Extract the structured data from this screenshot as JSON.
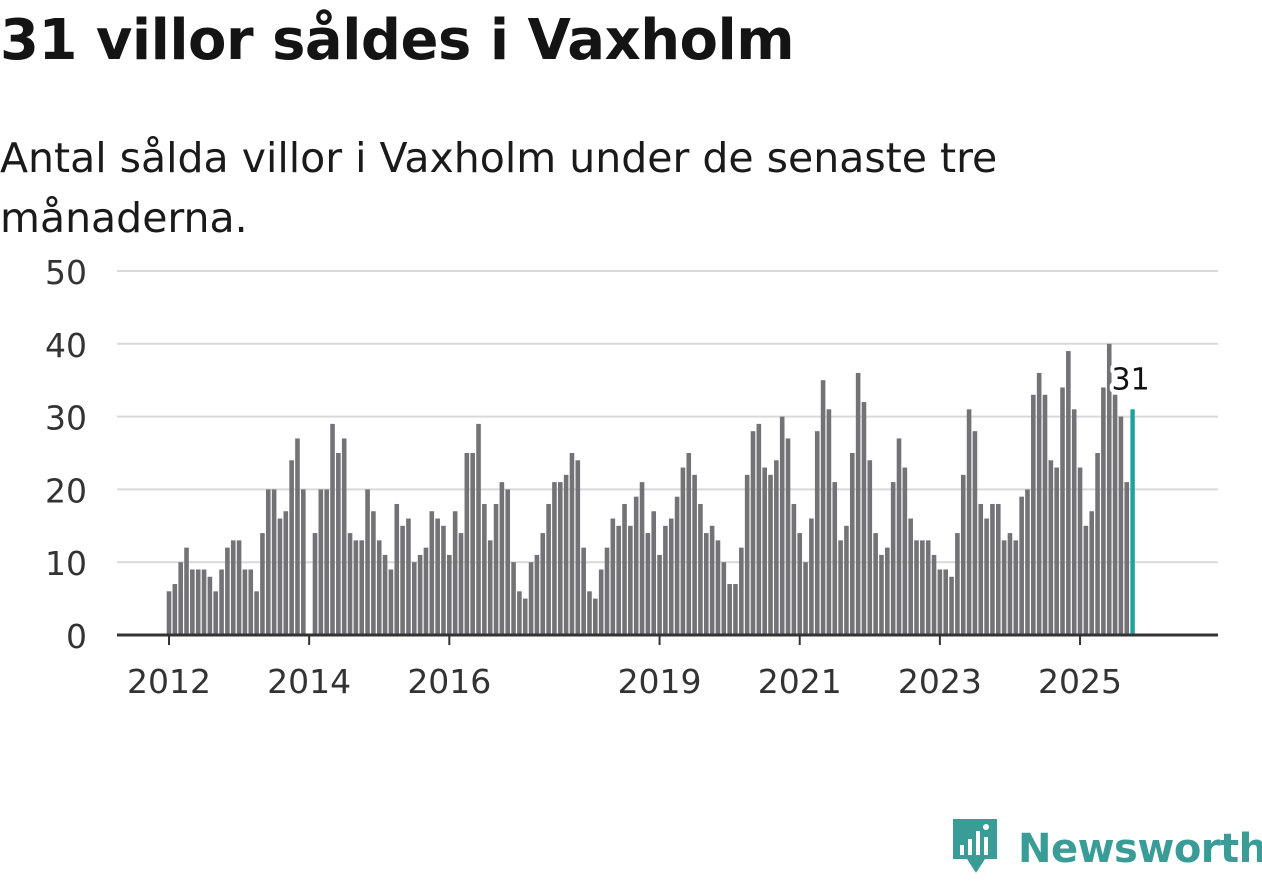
{
  "title": "31 villor såldes i Vaxholm",
  "subtitle": "Antal sålda villor i Vaxholm under de senaste tre månaderna.",
  "brand": {
    "name": "Newsworthy",
    "color": "#3a9c96",
    "icon": "chart-speech-bubble-icon"
  },
  "colors": {
    "bar": "#737276",
    "highlight": "#1ba39c",
    "grid": "#d9d9d9",
    "axis": "#333333"
  },
  "chart_data": {
    "type": "bar",
    "title": "31 villor såldes i Vaxholm",
    "xlabel": "",
    "ylabel": "",
    "ylim": [
      0,
      50
    ],
    "yticks": [
      0,
      10,
      20,
      30,
      40,
      50
    ],
    "grid": true,
    "start": "2012-01",
    "interval": "month",
    "xticks": [
      {
        "label": "2012",
        "index": 0
      },
      {
        "label": "2014",
        "index": 24
      },
      {
        "label": "2016",
        "index": 48
      },
      {
        "label": "2019",
        "index": 84
      },
      {
        "label": "2021",
        "index": 108
      },
      {
        "label": "2023",
        "index": 132
      },
      {
        "label": "2025",
        "index": 156
      }
    ],
    "values": [
      6,
      7,
      10,
      12,
      9,
      9,
      9,
      8,
      6,
      9,
      12,
      13,
      13,
      9,
      9,
      6,
      14,
      20,
      20,
      16,
      17,
      24,
      27,
      20,
      0,
      14,
      20,
      20,
      29,
      25,
      27,
      14,
      13,
      13,
      20,
      17,
      13,
      11,
      9,
      18,
      15,
      16,
      10,
      11,
      12,
      17,
      16,
      15,
      11,
      17,
      14,
      25,
      25,
      29,
      18,
      13,
      18,
      21,
      20,
      10,
      6,
      5,
      10,
      11,
      14,
      18,
      21,
      21,
      22,
      25,
      24,
      12,
      6,
      5,
      9,
      12,
      16,
      15,
      18,
      15,
      19,
      21,
      14,
      17,
      11,
      15,
      16,
      19,
      23,
      25,
      22,
      18,
      14,
      15,
      13,
      10,
      7,
      7,
      12,
      22,
      28,
      29,
      23,
      22,
      24,
      30,
      27,
      18,
      14,
      10,
      16,
      28,
      35,
      31,
      21,
      13,
      15,
      25,
      36,
      32,
      24,
      14,
      11,
      12,
      21,
      27,
      23,
      16,
      13,
      13,
      13,
      11,
      9,
      9,
      8,
      14,
      22,
      31,
      28,
      18,
      16,
      18,
      18,
      13,
      14,
      13,
      19,
      20,
      33,
      36,
      33,
      24,
      23,
      34,
      39,
      31,
      23,
      15,
      17,
      25,
      34,
      40,
      33,
      30,
      21,
      31
    ],
    "highlight_index": 165,
    "highlight_label": "31"
  }
}
